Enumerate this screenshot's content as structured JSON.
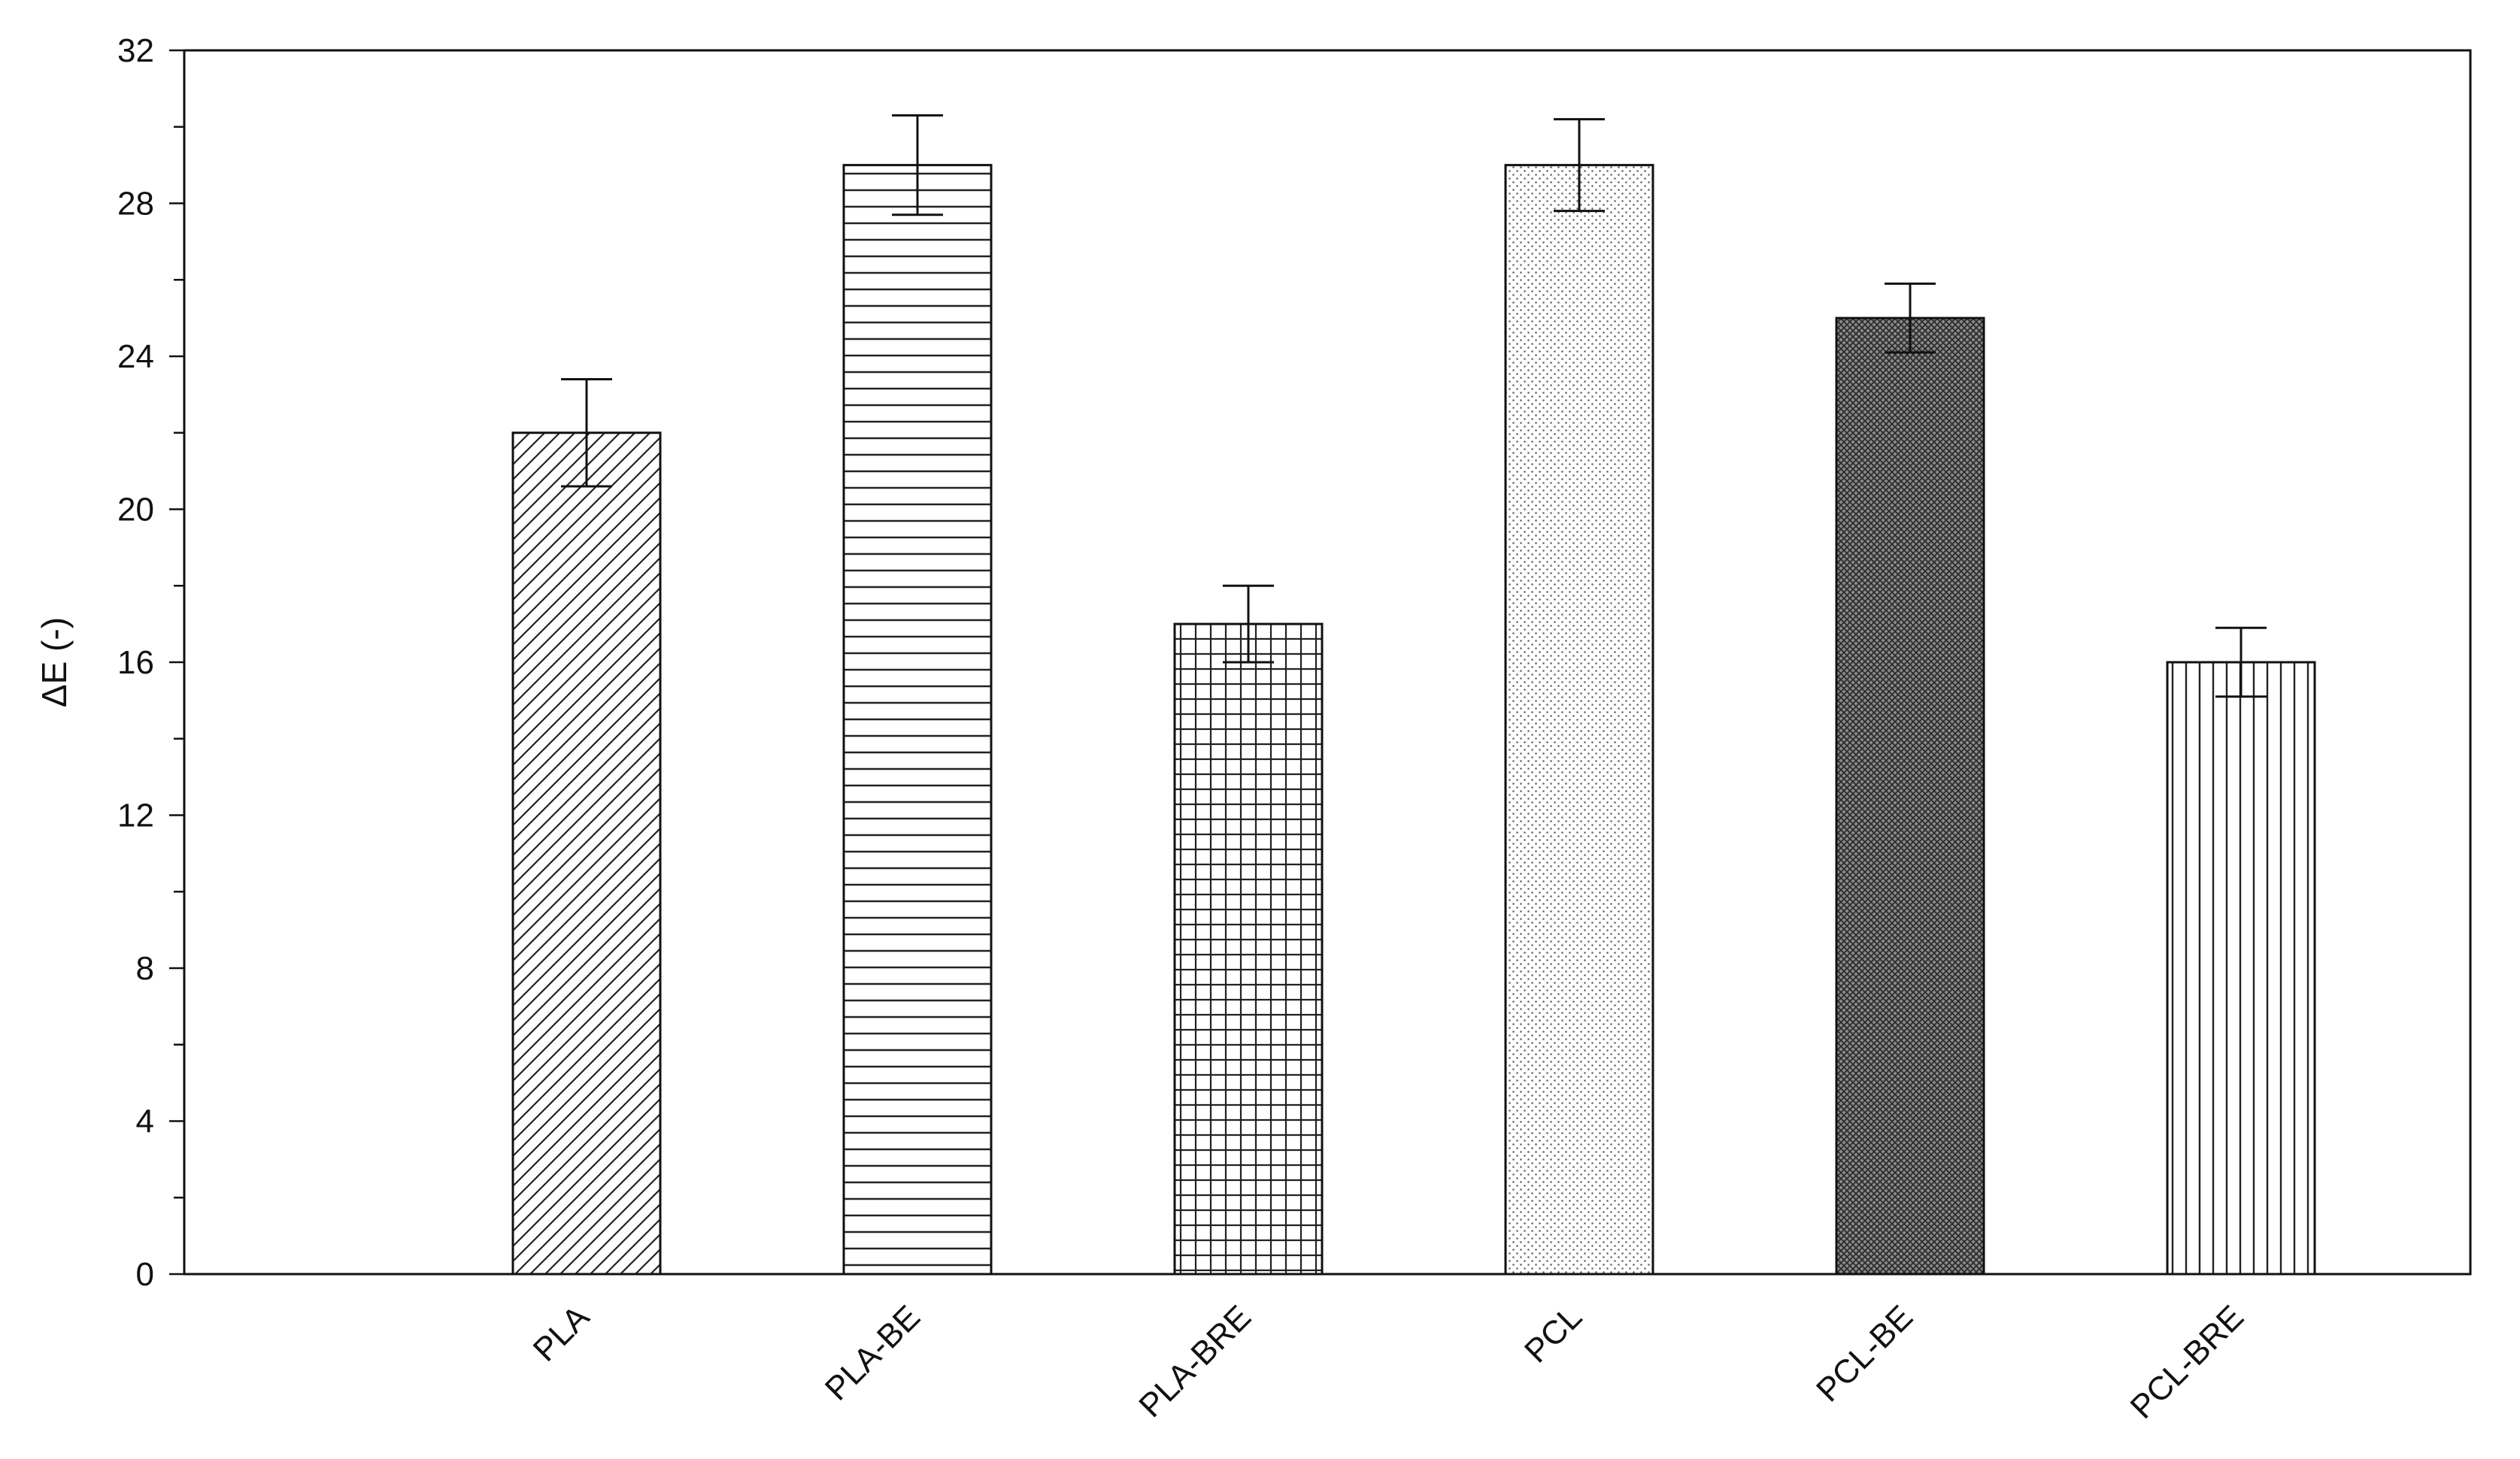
{
  "chart_data": {
    "type": "bar",
    "title": "",
    "xlabel": "",
    "ylabel": "ΔE (-)",
    "ylim": [
      0,
      32
    ],
    "yticks": [
      0,
      4,
      8,
      12,
      16,
      20,
      24,
      28,
      32
    ],
    "grid": false,
    "legend": "none",
    "categories": [
      "PLA",
      "PLA-BE",
      "PLA-BRE",
      "PCL",
      "PCL-BE",
      "PCL-BRE"
    ],
    "values": [
      22,
      29,
      17,
      29,
      25,
      16
    ],
    "errors": [
      1.4,
      1.3,
      1.0,
      1.2,
      0.9,
      0.9
    ],
    "patterns": [
      "diagonal-hatch",
      "horizontal-lines",
      "grid",
      "dots",
      "dense-crosshatch",
      "vertical-lines"
    ],
    "colors": {
      "bar_fill": "#ffffff",
      "ink": "#111111"
    }
  }
}
